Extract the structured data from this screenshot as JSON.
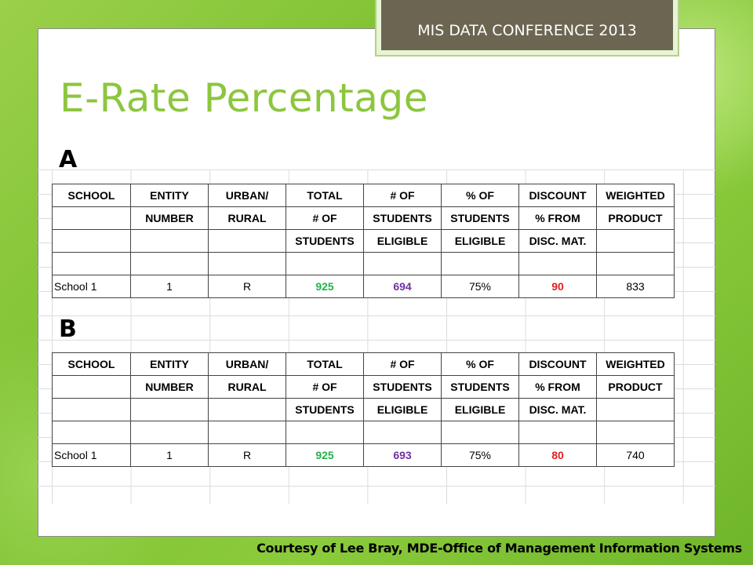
{
  "banner": "MIS DATA CONFERENCE 2013",
  "title": "E-Rate Percentage",
  "tables": [
    {
      "label": "A",
      "header_rows": [
        [
          "SCHOOL",
          "ENTITY",
          "URBAN/",
          "TOTAL",
          "# OF",
          "% OF",
          "DISCOUNT",
          "WEIGHTED"
        ],
        [
          "",
          "NUMBER",
          "RURAL",
          "# OF",
          "STUDENTS",
          "STUDENTS",
          "% FROM",
          "PRODUCT"
        ],
        [
          "",
          "",
          "",
          "STUDENTS",
          "ELIGIBLE",
          "ELIGIBLE",
          "DISC. MAT.",
          ""
        ],
        [
          "",
          "",
          "",
          "",
          "",
          "",
          "",
          ""
        ]
      ],
      "data_row": [
        "School 1",
        "1",
        "R",
        "925",
        "694",
        "75%",
        "90",
        "833"
      ]
    },
    {
      "label": "B",
      "header_rows": [
        [
          "SCHOOL",
          "ENTITY",
          "URBAN/",
          "TOTAL",
          "# OF",
          "% OF",
          "DISCOUNT",
          "WEIGHTED"
        ],
        [
          "",
          "NUMBER",
          "RURAL",
          "# OF",
          "STUDENTS",
          "STUDENTS",
          "% FROM",
          "PRODUCT"
        ],
        [
          "",
          "",
          "",
          "STUDENTS",
          "ELIGIBLE",
          "ELIGIBLE",
          "DISC. MAT.",
          ""
        ],
        [
          "",
          "",
          "",
          "",
          "",
          "",
          "",
          ""
        ]
      ],
      "data_row": [
        "School 1",
        "1",
        "R",
        "925",
        "693",
        "75%",
        "80",
        "740"
      ]
    }
  ],
  "highlight_colors": {
    "total_students": "#21b24b",
    "students_eligible": "#7030a0",
    "discount": "#e02020"
  },
  "credit": "Courtesy of Lee Bray, MDE-Office of Management  Information Systems"
}
